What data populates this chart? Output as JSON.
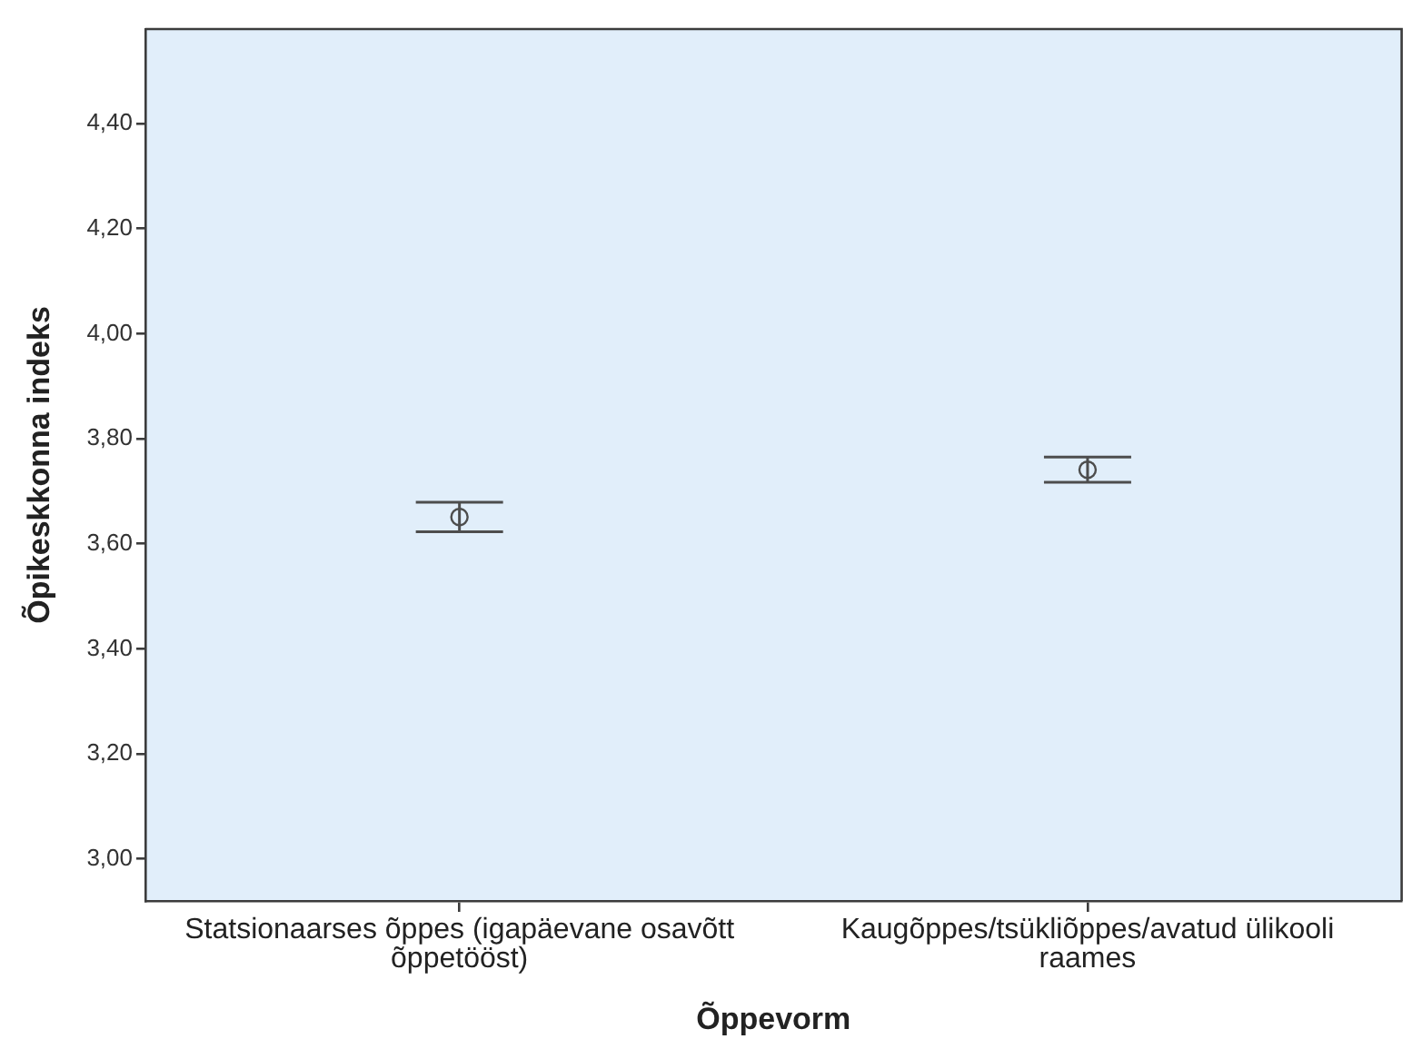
{
  "chart_data": {
    "type": "scatter",
    "xlabel": "Õppevorm",
    "ylabel": "Õpikeskkonna indeks",
    "categories": [
      "Statsionaarses õppes (igapäevane osavõtt õppetööst)",
      "Kaugõppes/tsükliõppes/avatud ülikooli raames"
    ],
    "values": [
      3.651,
      3.741
    ],
    "errors": [
      0.028,
      0.024
    ],
    "color": "#4d4d4d",
    "marker": "circle",
    "ylim": [
      2.92,
      4.58
    ],
    "yticks": [
      {
        "value": 3,
        "label": "3,00"
      },
      {
        "value": 3.2,
        "label": "3,20"
      },
      {
        "value": 3.4,
        "label": "3,40"
      },
      {
        "value": 3.6,
        "label": "3,60"
      },
      {
        "value": 3.8,
        "label": "3,80"
      },
      {
        "value": 4,
        "label": "4,00"
      },
      {
        "value": 4.2,
        "label": "4,20"
      },
      {
        "value": 4.4,
        "label": "4,40"
      }
    ],
    "grid": false,
    "legend": false
  }
}
